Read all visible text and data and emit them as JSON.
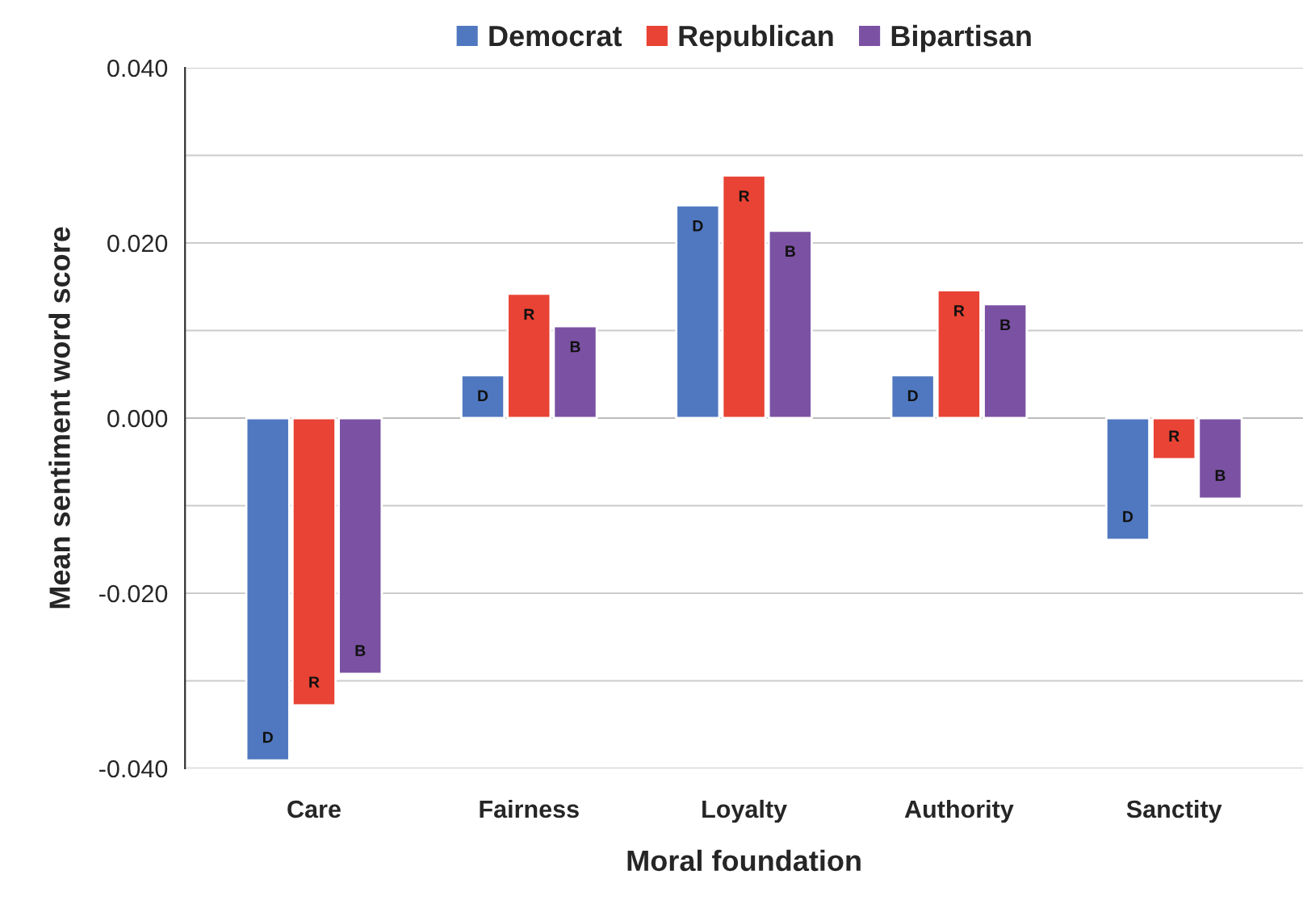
{
  "chart_data": {
    "type": "bar",
    "xlabel": "Moral foundation",
    "ylabel": "Mean sentiment word score",
    "categories": [
      "Care",
      "Fairness",
      "Loyalty",
      "Authority",
      "Sanctity"
    ],
    "series": [
      {
        "name": "Democrat",
        "color": "#5078c0",
        "values": [
          -0.0391,
          0.0049,
          0.0243,
          0.0049,
          -0.0139
        ],
        "value_labels": [
          "D",
          "D",
          "D",
          "D",
          "D"
        ]
      },
      {
        "name": "Republican",
        "color": "#e84334",
        "values": [
          -0.0328,
          0.0142,
          0.0277,
          0.0146,
          -0.0047
        ],
        "value_labels": [
          "R",
          "R",
          "R",
          "R",
          "R"
        ]
      },
      {
        "name": "Bipartisan",
        "color": "#7b52a3",
        "values": [
          -0.0292,
          0.0105,
          0.0214,
          0.013,
          -0.0092
        ],
        "value_labels": [
          "B",
          "B",
          "B",
          "B",
          "B"
        ]
      }
    ],
    "ylim": [
      -0.04,
      0.04
    ],
    "yticks": [
      {
        "value": -0.04,
        "label": "-0.040"
      },
      {
        "value": -0.03,
        "label": null
      },
      {
        "value": -0.02,
        "label": "-0.020"
      },
      {
        "value": -0.01,
        "label": null
      },
      {
        "value": 0,
        "label": "0.000"
      },
      {
        "value": 0.01,
        "label": null
      },
      {
        "value": 0.02,
        "label": "0.020"
      },
      {
        "value": 0.03,
        "label": null
      },
      {
        "value": 0.04,
        "label": "0.040"
      }
    ],
    "grid": "y",
    "legend": "top"
  }
}
